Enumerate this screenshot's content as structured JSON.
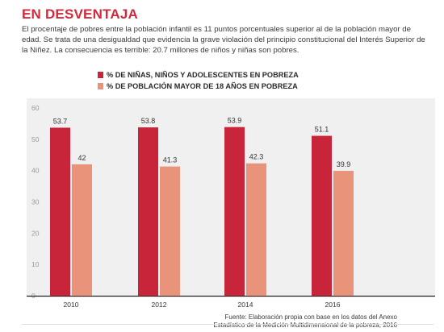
{
  "header": {
    "title": "EN DESVENTAJA",
    "intro": "El procentaje de pobres entre la población infantil es 11 puntos porcentuales superior al de la población mayor de edad. Se trata de una desigualdad que evidencia la grave violación del principio constitucional del Interés Superior de la Niñez. La consecuencia es terrible: 20.7 millones de niños y niñas son pobres."
  },
  "colors": {
    "title": "#d3283a",
    "series_children": "#c8253a",
    "series_adults": "#e8937a",
    "panel": "#f0f0f0",
    "axis_text": "#9a9a9a"
  },
  "chart_data": {
    "type": "bar",
    "categories": [
      "2010",
      "2012",
      "2014",
      "2016"
    ],
    "series": [
      {
        "name": "% DE NIÑAS, NIÑOS Y ADOLESCENTES EN POBREZA",
        "values": [
          53.7,
          53.8,
          53.9,
          51.1
        ]
      },
      {
        "name": "% DE POBLACIÓN MAYOR DE 18 AÑOS EN POBREZA",
        "values": [
          42,
          41.3,
          42.3,
          39.9
        ]
      }
    ],
    "y_ticks": [
      0,
      10,
      20,
      30,
      40,
      50,
      60
    ],
    "ylim": [
      0,
      60
    ],
    "legend_position": "top-left",
    "grid": false
  },
  "source": {
    "line1": "Fuente: Elaboración propia con base en los datos del Anexo",
    "line2": "Estadístico de la Medición Multidimensional de la pobreza, 2016"
  }
}
